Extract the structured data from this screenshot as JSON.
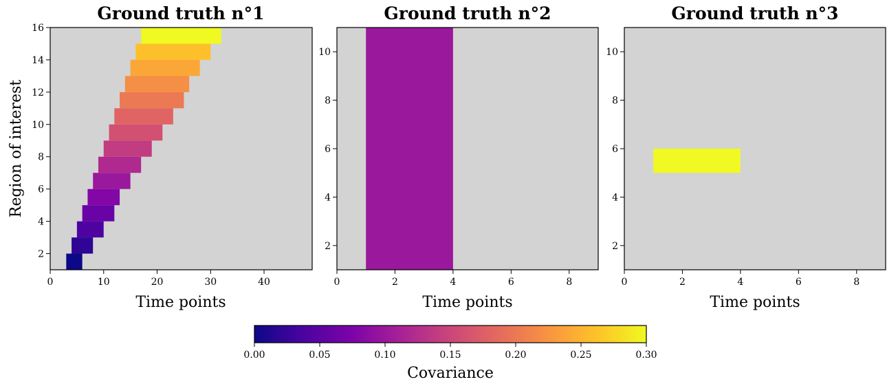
{
  "chart_data": [
    {
      "type": "heatmap",
      "title": "Ground truth n°1",
      "xlabel": "Time points",
      "ylabel": "Region of interest",
      "xlim": [
        0,
        49
      ],
      "ylim": [
        1,
        16
      ],
      "xticks": [
        0,
        10,
        20,
        30,
        40
      ],
      "yticks": [
        2,
        4,
        6,
        8,
        10,
        12,
        14,
        16
      ],
      "background": "#d3d3d3",
      "cells": [
        {
          "x0": 3,
          "x1": 6,
          "y0": 1,
          "y1": 2,
          "value": 0.0
        },
        {
          "x0": 4,
          "x1": 8,
          "y0": 2,
          "y1": 3,
          "value": 0.02
        },
        {
          "x0": 5,
          "x1": 10,
          "y0": 3,
          "y1": 4,
          "value": 0.04
        },
        {
          "x0": 6,
          "x1": 12,
          "y0": 4,
          "y1": 5,
          "value": 0.06
        },
        {
          "x0": 7,
          "x1": 13,
          "y0": 5,
          "y1": 6,
          "value": 0.08
        },
        {
          "x0": 8,
          "x1": 15,
          "y0": 6,
          "y1": 7,
          "value": 0.1
        },
        {
          "x0": 9,
          "x1": 17,
          "y0": 7,
          "y1": 8,
          "value": 0.12
        },
        {
          "x0": 10,
          "x1": 19,
          "y0": 8,
          "y1": 9,
          "value": 0.14
        },
        {
          "x0": 11,
          "x1": 21,
          "y0": 9,
          "y1": 10,
          "value": 0.16
        },
        {
          "x0": 12,
          "x1": 23,
          "y0": 10,
          "y1": 11,
          "value": 0.18
        },
        {
          "x0": 13,
          "x1": 25,
          "y0": 11,
          "y1": 12,
          "value": 0.2
        },
        {
          "x0": 14,
          "x1": 26,
          "y0": 12,
          "y1": 13,
          "value": 0.22
        },
        {
          "x0": 15,
          "x1": 28,
          "y0": 13,
          "y1": 14,
          "value": 0.24
        },
        {
          "x0": 16,
          "x1": 30,
          "y0": 14,
          "y1": 15,
          "value": 0.26
        },
        {
          "x0": 17,
          "x1": 32,
          "y0": 15,
          "y1": 16,
          "value": 0.3
        }
      ]
    },
    {
      "type": "heatmap",
      "title": "Ground truth n°2",
      "xlabel": "Time points",
      "ylabel": "",
      "xlim": [
        0,
        9
      ],
      "ylim": [
        1,
        11
      ],
      "xticks": [
        0,
        2,
        4,
        6,
        8
      ],
      "yticks": [
        2,
        4,
        6,
        8,
        10
      ],
      "background": "#d3d3d3",
      "cells": [
        {
          "x0": 1,
          "x1": 4,
          "y0": 1,
          "y1": 11,
          "value": 0.1
        }
      ]
    },
    {
      "type": "heatmap",
      "title": "Ground truth n°3",
      "xlabel": "Time points",
      "ylabel": "",
      "xlim": [
        0,
        9
      ],
      "ylim": [
        1,
        11
      ],
      "xticks": [
        0,
        2,
        4,
        6,
        8
      ],
      "yticks": [
        2,
        4,
        6,
        8,
        10
      ],
      "background": "#d3d3d3",
      "cells": [
        {
          "x0": 1,
          "x1": 4,
          "y0": 5,
          "y1": 6,
          "value": 0.3
        }
      ]
    }
  ],
  "colorbar": {
    "label": "Covariance",
    "min": 0.0,
    "max": 0.3,
    "ticks": [
      "0.00",
      "0.05",
      "0.10",
      "0.15",
      "0.20",
      "0.25",
      "0.30"
    ],
    "colormap": "plasma"
  }
}
